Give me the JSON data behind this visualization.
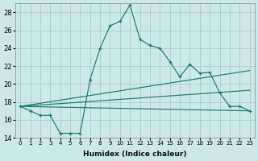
{
  "xlabel": "Humidex (Indice chaleur)",
  "bg_color": "#cde8e8",
  "grid_color": "#a8cccc",
  "line_color": "#1a7a6e",
  "x_values": [
    0,
    1,
    2,
    3,
    4,
    5,
    6,
    7,
    8,
    9,
    10,
    11,
    12,
    13,
    14,
    15,
    16,
    17,
    18,
    19,
    20,
    21,
    22,
    23
  ],
  "series1": [
    17.5,
    17.0,
    16.5,
    16.5,
    14.5,
    14.5,
    14.5,
    20.5,
    24.0,
    26.5,
    27.0,
    28.8,
    25.0,
    24.3,
    24.0,
    22.5,
    20.8,
    22.2,
    21.2,
    21.3,
    19.0,
    17.5,
    17.5,
    17.0
  ],
  "line_a": [
    [
      0,
      17.5
    ],
    [
      23,
      21.5
    ]
  ],
  "line_b": [
    [
      0,
      17.5
    ],
    [
      23,
      19.3
    ]
  ],
  "line_c": [
    [
      0,
      17.5
    ],
    [
      23,
      17.0
    ]
  ],
  "ylim": [
    14,
    29
  ],
  "xlim": [
    -0.5,
    23.5
  ],
  "yticks": [
    14,
    16,
    18,
    20,
    22,
    24,
    26,
    28
  ]
}
